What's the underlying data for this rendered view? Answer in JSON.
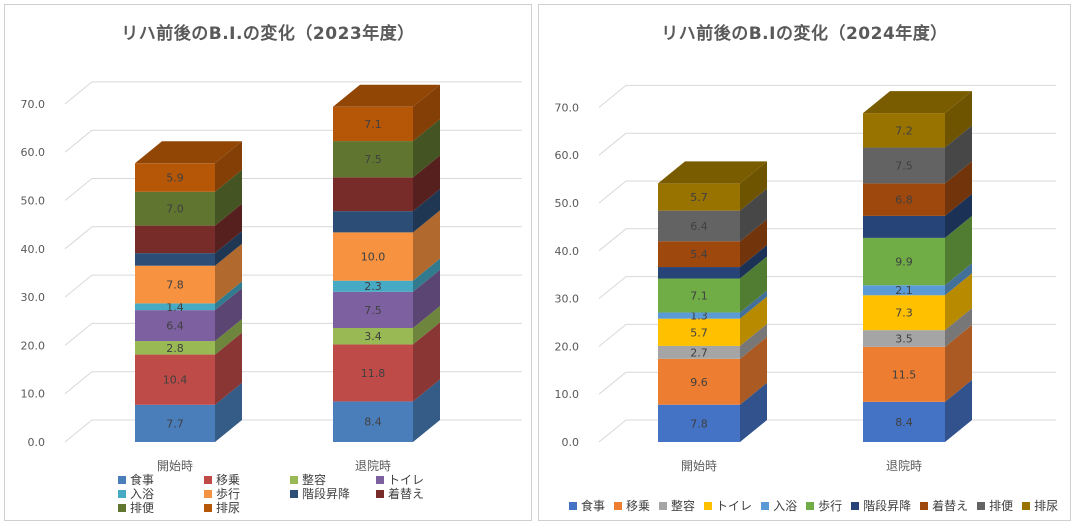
{
  "chart_data": [
    {
      "type": "bar",
      "stacked": true,
      "three_d": true,
      "title": "リハ前後のB.I.の変化（2023年度）",
      "categories": [
        "開始時",
        "退院時"
      ],
      "ylim": [
        0,
        70
      ],
      "yticks": [
        "0.0",
        "10.0",
        "20.0",
        "30.0",
        "40.0",
        "50.0",
        "60.0",
        "70.0"
      ],
      "grid": true,
      "legend_position": "bottom",
      "series": [
        {
          "name": "食事",
          "color": "#4a7ebb",
          "values": [
            7.7,
            8.4
          ]
        },
        {
          "name": "移乗",
          "color": "#be4b48",
          "values": [
            10.4,
            11.8
          ]
        },
        {
          "name": "整容",
          "color": "#98b954",
          "values": [
            2.8,
            3.4
          ]
        },
        {
          "name": "トイレ",
          "color": "#7d60a0",
          "values": [
            6.4,
            7.5
          ]
        },
        {
          "name": "入浴",
          "color": "#46aac5",
          "values": [
            1.4,
            2.3
          ]
        },
        {
          "name": "歩行",
          "color": "#f69240",
          "values": [
            7.8,
            10.0
          ]
        },
        {
          "name": "階段昇降",
          "color": "#2c4d75",
          "values": [
            2.6,
            4.4
          ]
        },
        {
          "name": "着替え",
          "color": "#772c2a",
          "values": [
            5.7,
            7.0
          ]
        },
        {
          "name": "排便",
          "color": "#5f7530",
          "values": [
            7.0,
            7.5
          ]
        },
        {
          "name": "排尿",
          "color": "#b65708",
          "values": [
            5.9,
            7.1
          ]
        }
      ],
      "data_labels": [
        [
          "7.7",
          "10.4",
          "2.8",
          "6.4",
          "1.4",
          "7.8",
          "",
          "",
          "7.0",
          "5.9"
        ],
        [
          "8.4",
          "11.8",
          "3.4",
          "7.5",
          "2.3",
          "10.0",
          "",
          "",
          "7.5",
          "7.1"
        ]
      ]
    },
    {
      "type": "bar",
      "stacked": true,
      "three_d": true,
      "title": "リハ前後のB.Iの変化（2024年度）",
      "categories": [
        "開始時",
        "退院時"
      ],
      "ylim": [
        0,
        70
      ],
      "yticks": [
        "0.0",
        "10.0",
        "20.0",
        "30.0",
        "40.0",
        "50.0",
        "60.0",
        "70.0"
      ],
      "grid": true,
      "legend_position": "bottom",
      "series": [
        {
          "name": "食事",
          "color": "#4472c4",
          "values": [
            7.8,
            8.4
          ]
        },
        {
          "name": "移乗",
          "color": "#ed7d31",
          "values": [
            9.6,
            11.5
          ]
        },
        {
          "name": "整容",
          "color": "#a5a5a5",
          "values": [
            2.7,
            3.5
          ]
        },
        {
          "name": "トイレ",
          "color": "#ffc000",
          "values": [
            5.7,
            7.3
          ]
        },
        {
          "name": "入浴",
          "color": "#5b9bd5",
          "values": [
            1.3,
            2.1
          ]
        },
        {
          "name": "歩行",
          "color": "#70ad47",
          "values": [
            7.1,
            9.9
          ]
        },
        {
          "name": "階段昇降",
          "color": "#264478",
          "values": [
            2.4,
            4.6
          ]
        },
        {
          "name": "着替え",
          "color": "#9e480e",
          "values": [
            5.4,
            6.8
          ]
        },
        {
          "name": "排便",
          "color": "#636363",
          "values": [
            6.4,
            7.5
          ]
        },
        {
          "name": "排尿",
          "color": "#997300",
          "values": [
            5.7,
            7.2
          ]
        }
      ],
      "data_labels": [
        [
          "7.8",
          "9.6",
          "2.7",
          "5.7",
          "1.3",
          "7.1",
          "",
          "5.4",
          "6.4",
          "5.7"
        ],
        [
          "8.4",
          "11.5",
          "3.5",
          "7.3",
          "2.1",
          "9.9",
          "",
          "6.8",
          "7.5",
          "7.2"
        ]
      ]
    }
  ]
}
